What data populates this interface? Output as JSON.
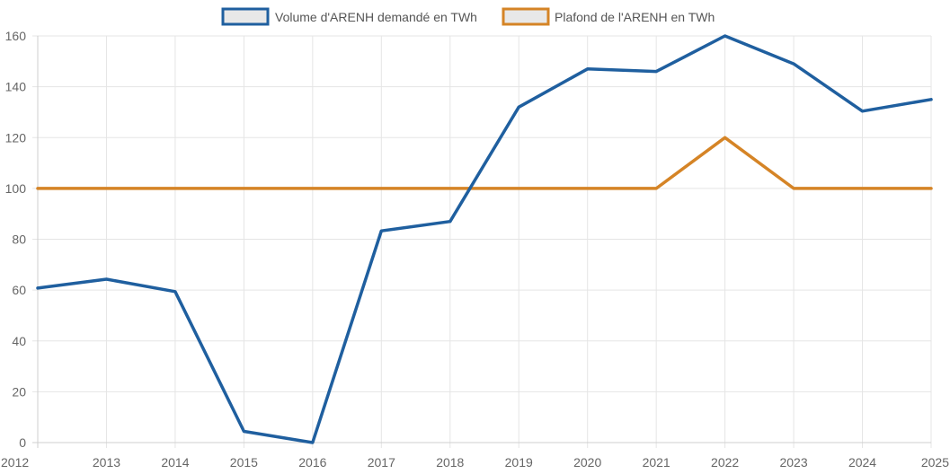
{
  "chart_data": {
    "type": "line",
    "title": "",
    "xlabel": "",
    "ylabel": "",
    "x": [
      "2012",
      "2013",
      "2014",
      "2015",
      "2016",
      "2017",
      "2018",
      "2019",
      "2020",
      "2021",
      "2022",
      "2023",
      "2024",
      "2025"
    ],
    "ylim": [
      0,
      160
    ],
    "yticks": [
      "0",
      "20",
      "40",
      "60",
      "80",
      "100",
      "120",
      "140",
      "160"
    ],
    "grid": true,
    "legend_position": "top",
    "series": [
      {
        "name": "Volume d'ARENH demandé en TWh",
        "color": "#1f5f9f",
        "values": [
          60.8,
          64.3,
          59.4,
          4.4,
          0,
          83.3,
          87,
          132,
          147,
          146,
          160,
          149,
          130.4,
          135
        ]
      },
      {
        "name": "Plafond de l'ARENH en TWh",
        "color": "#d58426",
        "values": [
          100,
          100,
          100,
          100,
          100,
          100,
          100,
          100,
          100,
          100,
          120,
          100,
          100,
          100
        ]
      }
    ]
  }
}
